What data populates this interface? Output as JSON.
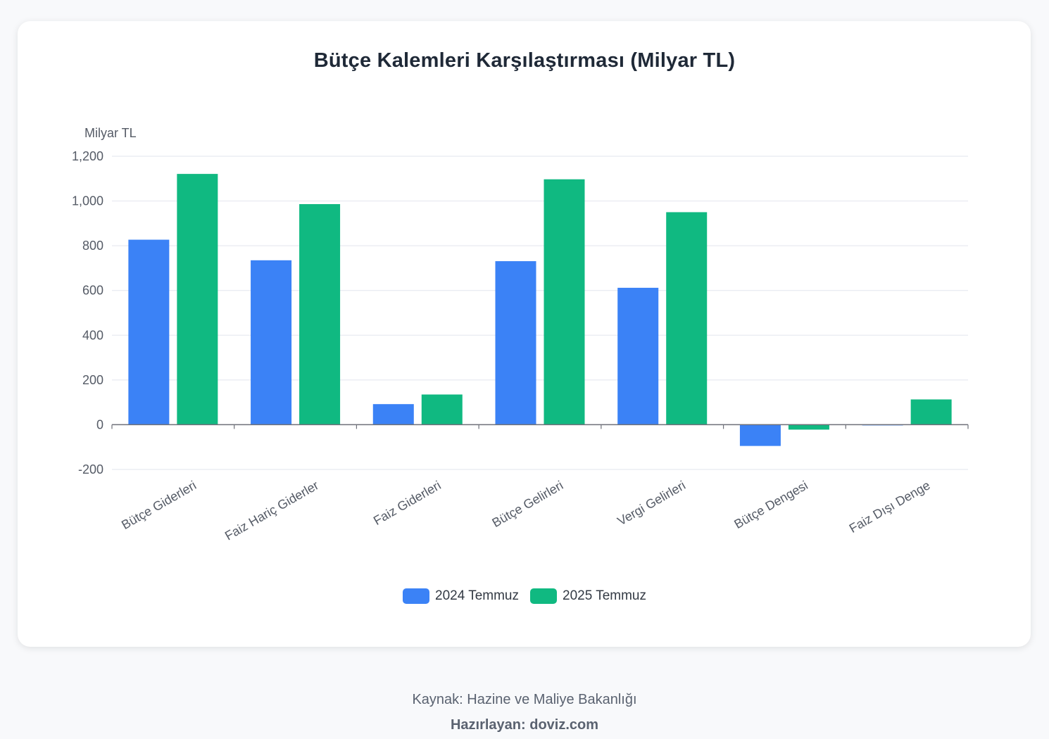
{
  "title": "Bütçe Kalemleri Karşılaştırması (Milyar TL)",
  "footer": {
    "source": "Kaynak: Hazine ve Maliye Bakanlığı",
    "author": "Hazırlayan: doviz.com"
  },
  "chart_data": {
    "type": "bar",
    "title": "Bütçe Kalemleri Karşılaştırması (Milyar TL)",
    "ylabel": "Milyar TL",
    "xlabel": "",
    "ylim": [
      -200,
      1200
    ],
    "yticks": [
      -200,
      0,
      200,
      400,
      600,
      800,
      1000,
      1200
    ],
    "ytick_labels": [
      "-200",
      "0",
      "200",
      "400",
      "600",
      "800",
      "1,000",
      "1,200"
    ],
    "grid": true,
    "legend_position": "bottom-center",
    "categories": [
      "Bütçe Giderleri",
      "Faiz Hariç Giderler",
      "Faiz Giderleri",
      "Bütçe Gelirleri",
      "Vergi Gelirleri",
      "Bütçe Dengesi",
      "Faiz Dışı Denge"
    ],
    "series": [
      {
        "name": "2024 Temmuz",
        "color": "#3b82f6",
        "values": [
          827,
          735,
          92,
          731,
          612,
          -95,
          -3
        ]
      },
      {
        "name": "2025 Temmuz",
        "color": "#10b981",
        "values": [
          1121,
          986,
          135,
          1097,
          950,
          -22,
          113
        ]
      }
    ]
  }
}
